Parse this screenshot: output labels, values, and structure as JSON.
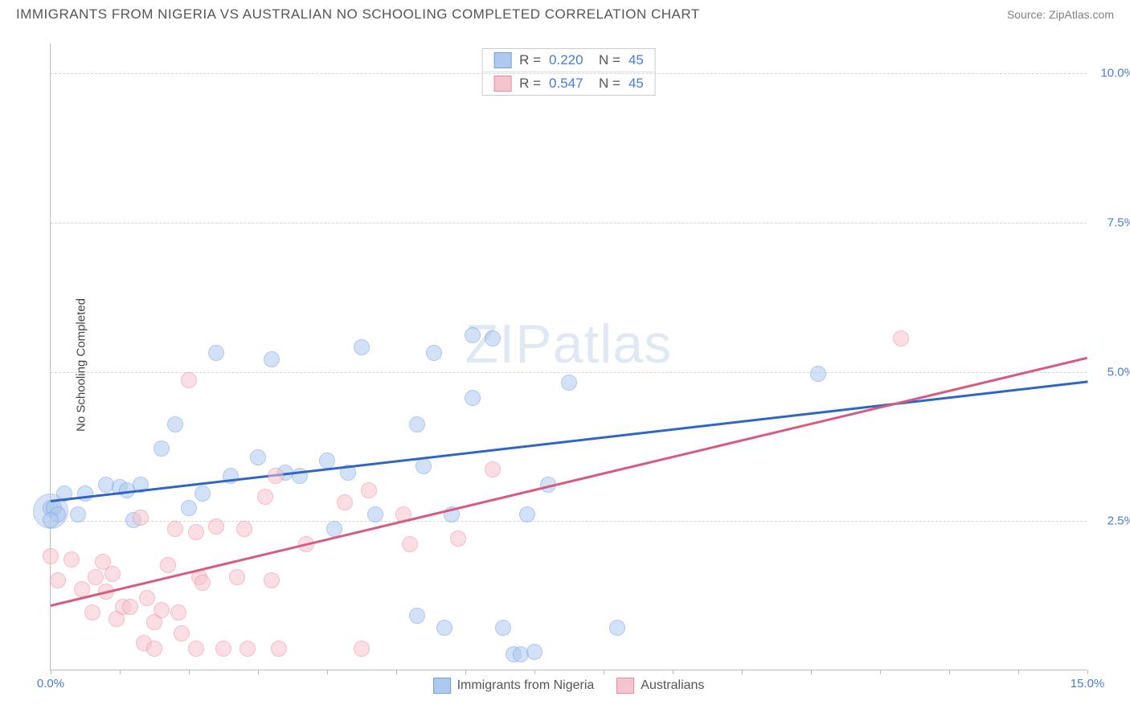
{
  "title": "IMMIGRANTS FROM NIGERIA VS AUSTRALIAN NO SCHOOLING COMPLETED CORRELATION CHART",
  "source": "Source: ZipAtlas.com",
  "ylabel": "No Schooling Completed",
  "watermark": "ZIPatlas",
  "chart": {
    "type": "scatter",
    "xlim": [
      0,
      15
    ],
    "ylim": [
      0,
      10.5
    ],
    "ytick_step": 2.5,
    "ytick_labels": [
      "2.5%",
      "5.0%",
      "7.5%",
      "10.0%"
    ],
    "xtick_positions": [
      0,
      1,
      2,
      3,
      4,
      5,
      6,
      7,
      8,
      9,
      10,
      11,
      12,
      13,
      14,
      15
    ],
    "x_axis_labels": {
      "left": "0.0%",
      "right": "15.0%"
    },
    "background_color": "#ffffff",
    "grid_color": "#d5d5d5",
    "axis_color": "#bbbbbb",
    "tick_label_color": "#4a7bd9",
    "marker_radius": 10,
    "marker_opacity": 0.55,
    "series": [
      {
        "name": "Immigrants from Nigeria",
        "fill_color": "#aec9ed",
        "stroke_color": "#6f9fe0",
        "line_color": "#2f66c4",
        "R": "0.220",
        "N": "45",
        "trend": {
          "x1": 0,
          "y1": 2.85,
          "x2": 15,
          "y2": 4.85
        },
        "points": [
          [
            0.0,
            2.7
          ],
          [
            0.05,
            2.7
          ],
          [
            0.1,
            2.6
          ],
          [
            0.2,
            2.95
          ],
          [
            0.4,
            2.6
          ],
          [
            0.5,
            2.95
          ],
          [
            0.8,
            3.1
          ],
          [
            1.0,
            3.05
          ],
          [
            1.1,
            3.0
          ],
          [
            1.2,
            2.5
          ],
          [
            1.3,
            3.1
          ],
          [
            1.6,
            3.7
          ],
          [
            1.8,
            4.1
          ],
          [
            2.0,
            2.7
          ],
          [
            2.2,
            2.95
          ],
          [
            2.4,
            5.3
          ],
          [
            2.6,
            3.25
          ],
          [
            3.0,
            3.55
          ],
          [
            3.2,
            5.2
          ],
          [
            3.4,
            3.3
          ],
          [
            3.6,
            3.25
          ],
          [
            4.0,
            3.5
          ],
          [
            4.1,
            2.35
          ],
          [
            4.3,
            3.3
          ],
          [
            4.5,
            5.4
          ],
          [
            4.7,
            2.6
          ],
          [
            5.3,
            4.1
          ],
          [
            5.4,
            3.4
          ],
          [
            5.55,
            5.3
          ],
          [
            5.8,
            2.6
          ],
          [
            6.1,
            4.55
          ],
          [
            6.1,
            5.6
          ],
          [
            6.4,
            5.55
          ],
          [
            6.55,
            0.7
          ],
          [
            6.7,
            0.25
          ],
          [
            6.8,
            0.25
          ],
          [
            6.9,
            2.6
          ],
          [
            7.2,
            3.1
          ],
          [
            7.5,
            4.8
          ],
          [
            8.2,
            0.7
          ],
          [
            11.1,
            4.95
          ],
          [
            5.3,
            0.9
          ],
          [
            5.7,
            0.7
          ],
          [
            7.0,
            0.3
          ],
          [
            0.0,
            2.5
          ]
        ],
        "big_point": {
          "x": 0.0,
          "y": 2.65,
          "r": 22
        }
      },
      {
        "name": "Australians",
        "fill_color": "#f6c4ce",
        "stroke_color": "#e78aa0",
        "line_color": "#d65b7e",
        "R": "0.547",
        "N": "45",
        "trend": {
          "x1": 0,
          "y1": 1.1,
          "x2": 15,
          "y2": 5.25
        },
        "points": [
          [
            0.0,
            1.9
          ],
          [
            0.1,
            1.5
          ],
          [
            0.3,
            1.85
          ],
          [
            0.45,
            1.35
          ],
          [
            0.6,
            0.95
          ],
          [
            0.65,
            1.55
          ],
          [
            0.75,
            1.8
          ],
          [
            0.8,
            1.3
          ],
          [
            0.9,
            1.6
          ],
          [
            0.95,
            0.85
          ],
          [
            1.05,
            1.05
          ],
          [
            1.15,
            1.05
          ],
          [
            1.3,
            2.55
          ],
          [
            1.35,
            0.45
          ],
          [
            1.4,
            1.2
          ],
          [
            1.5,
            0.8
          ],
          [
            1.5,
            0.35
          ],
          [
            1.6,
            1.0
          ],
          [
            1.7,
            1.75
          ],
          [
            1.8,
            2.35
          ],
          [
            1.85,
            0.95
          ],
          [
            1.9,
            0.6
          ],
          [
            2.0,
            4.85
          ],
          [
            2.1,
            2.3
          ],
          [
            2.1,
            0.35
          ],
          [
            2.15,
            1.55
          ],
          [
            2.2,
            1.45
          ],
          [
            2.4,
            2.4
          ],
          [
            2.5,
            0.35
          ],
          [
            2.7,
            1.55
          ],
          [
            2.8,
            2.35
          ],
          [
            2.85,
            0.35
          ],
          [
            3.1,
            2.9
          ],
          [
            3.2,
            1.5
          ],
          [
            3.25,
            3.25
          ],
          [
            3.3,
            0.35
          ],
          [
            3.7,
            2.1
          ],
          [
            4.25,
            2.8
          ],
          [
            4.5,
            0.35
          ],
          [
            4.6,
            3.0
          ],
          [
            5.1,
            2.6
          ],
          [
            5.2,
            2.1
          ],
          [
            5.9,
            2.2
          ],
          [
            6.4,
            3.35
          ],
          [
            12.3,
            5.55
          ]
        ]
      }
    ]
  },
  "legend_bottom": [
    {
      "label": "Immigrants from Nigeria",
      "fill": "#aec9ed",
      "stroke": "#6f9fe0"
    },
    {
      "label": "Australians",
      "fill": "#f6c4ce",
      "stroke": "#e78aa0"
    }
  ]
}
